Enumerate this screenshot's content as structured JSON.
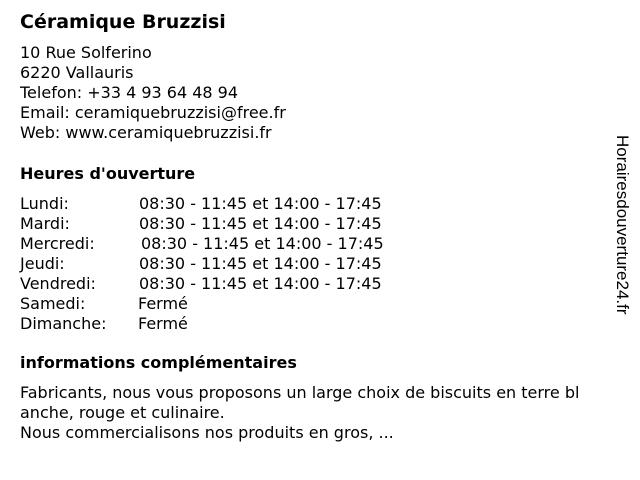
{
  "title": "Céramique Bruzzisi",
  "contact": {
    "street": "10 Rue Solferino",
    "city": "6220 Vallauris",
    "phone": "Telefon: +33 4 93 64 48 94",
    "email": "Email: ceramiquebruzzisi@free.fr",
    "web": "Web: www.ceramiquebruzzisi.fr"
  },
  "hours_heading": "Heures d'ouverture",
  "hours": [
    {
      "day": "Lundi:",
      "time": "08:30 - 11:45 et 14:00 - 17:45"
    },
    {
      "day": "Mardi:",
      "time": "08:30 - 11:45 et 14:00 - 17:45"
    },
    {
      "day": "Mercredi:",
      "time": "08:30 - 11:45 et 14:00 - 17:45"
    },
    {
      "day": "Jeudi:",
      "time": "08:30 - 11:45 et 14:00 - 17:45"
    },
    {
      "day": "Vendredi:",
      "time": "08:30 - 11:45 et 14:00 - 17:45"
    },
    {
      "day": "Samedi:",
      "time": "Fermé"
    },
    {
      "day": "Dimanche:",
      "time": "Fermé"
    }
  ],
  "info_heading": "informations complémentaires",
  "info_lines": [
    "Fabricants, nous vous proposons un large choix de biscuits en terre bl",
    "anche, rouge et culinaire.",
    "Nous commercialisons nos produits en gros, ..."
  ],
  "watermark": "Horairesdouverture24.fr"
}
